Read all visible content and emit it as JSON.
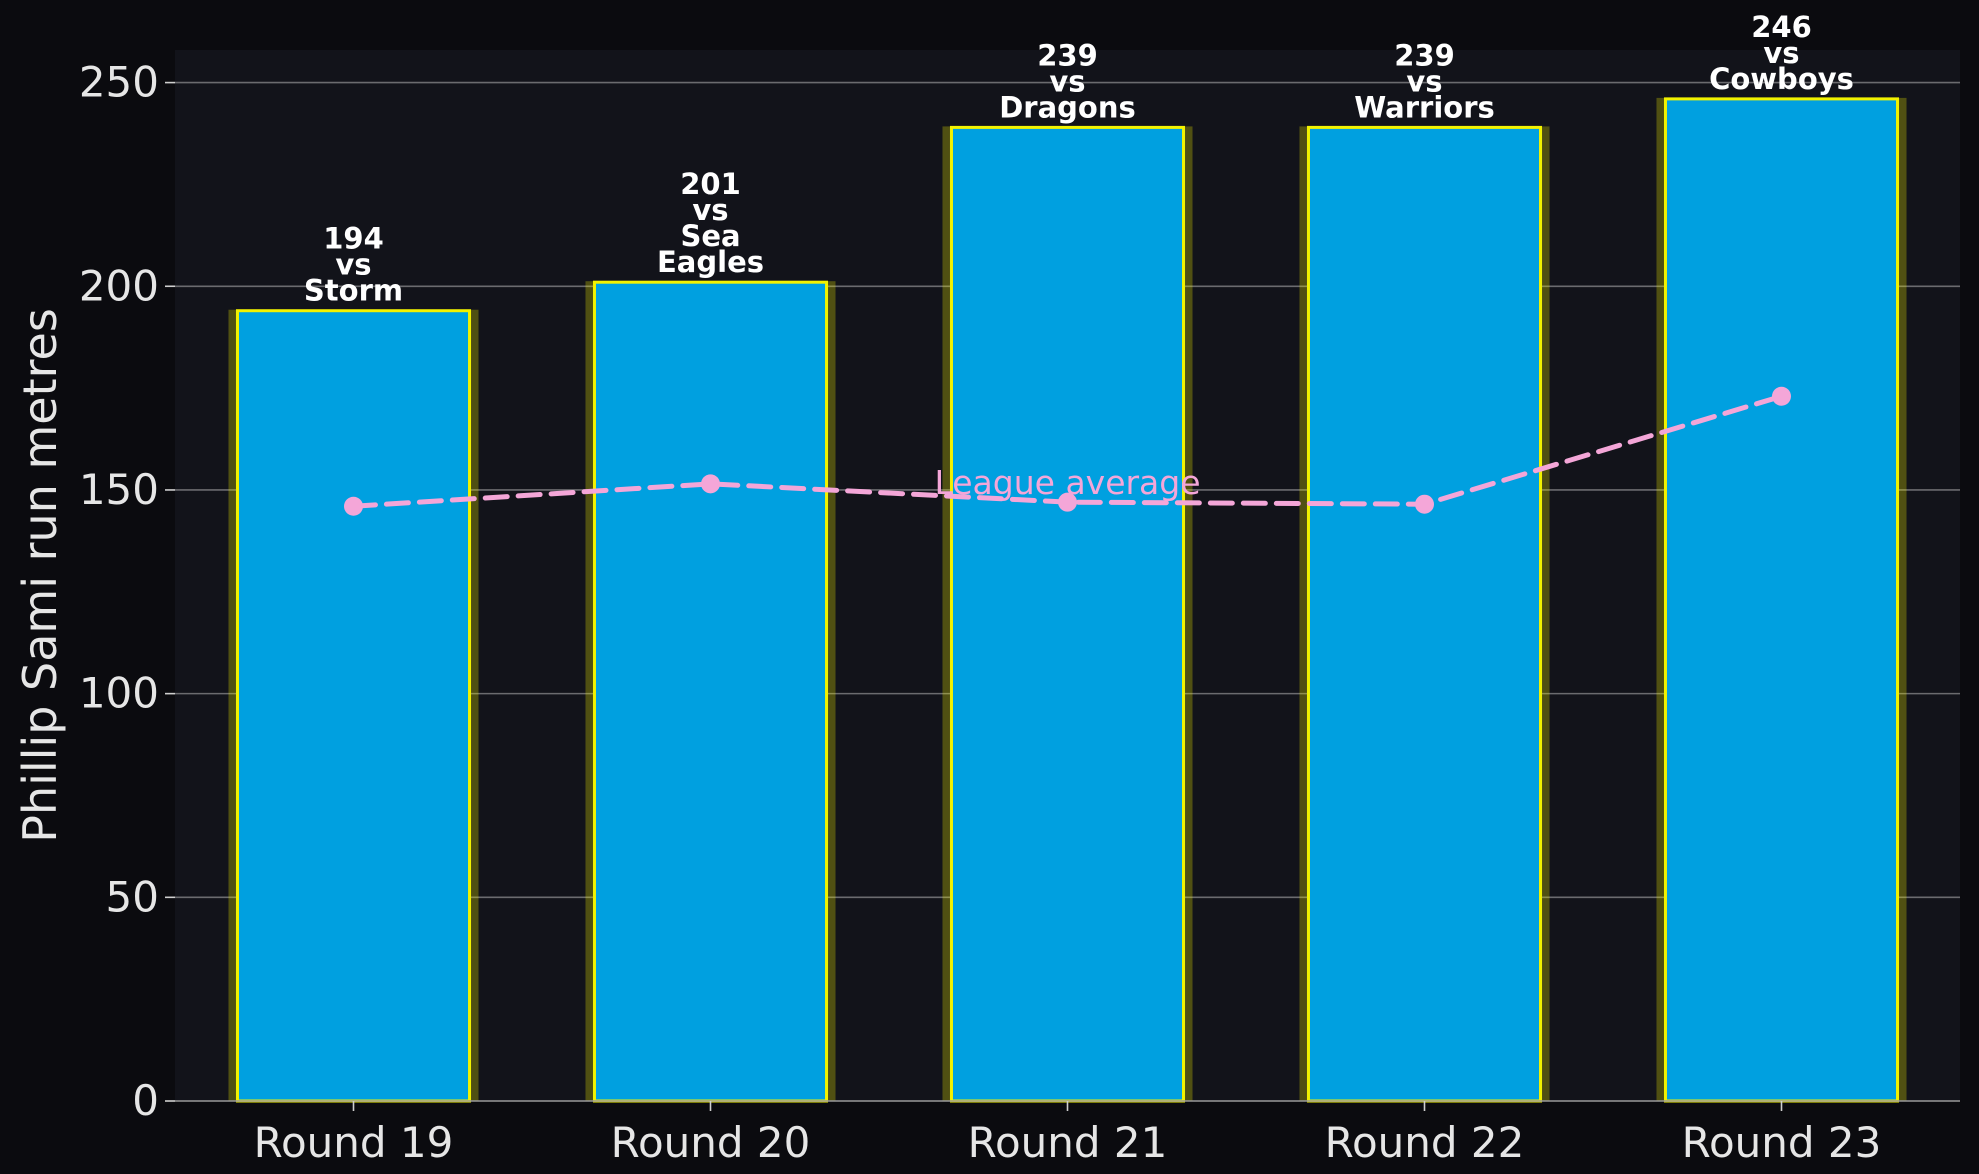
{
  "chart_data": {
    "type": "bar",
    "categories": [
      "Round 19",
      "Round 20",
      "Round 21",
      "Round 22",
      "Round 23"
    ],
    "series": [
      {
        "values": [
          194,
          201,
          239,
          239,
          246
        ],
        "labels": [
          "194\nvs\nStorm",
          "201\nvs\nSea\nEagles",
          "239\nvs\nDragons",
          "239\nvs\nWarriors",
          "246\nvs\nCowboys"
        ],
        "color": "#00a0e0",
        "edge_color": "#f2f200"
      },
      {
        "name": "League average",
        "type": "line",
        "values": [
          146,
          151.5,
          147,
          146.5,
          173
        ],
        "color": "#f4a6d8",
        "style": "dashed"
      }
    ],
    "ylabel": "Phillip Sami run metres",
    "xlabel": "",
    "ylim": [
      0,
      258
    ],
    "yticks": [
      0,
      50,
      100,
      150,
      200,
      250
    ],
    "grid": true,
    "background": "#12131a"
  }
}
